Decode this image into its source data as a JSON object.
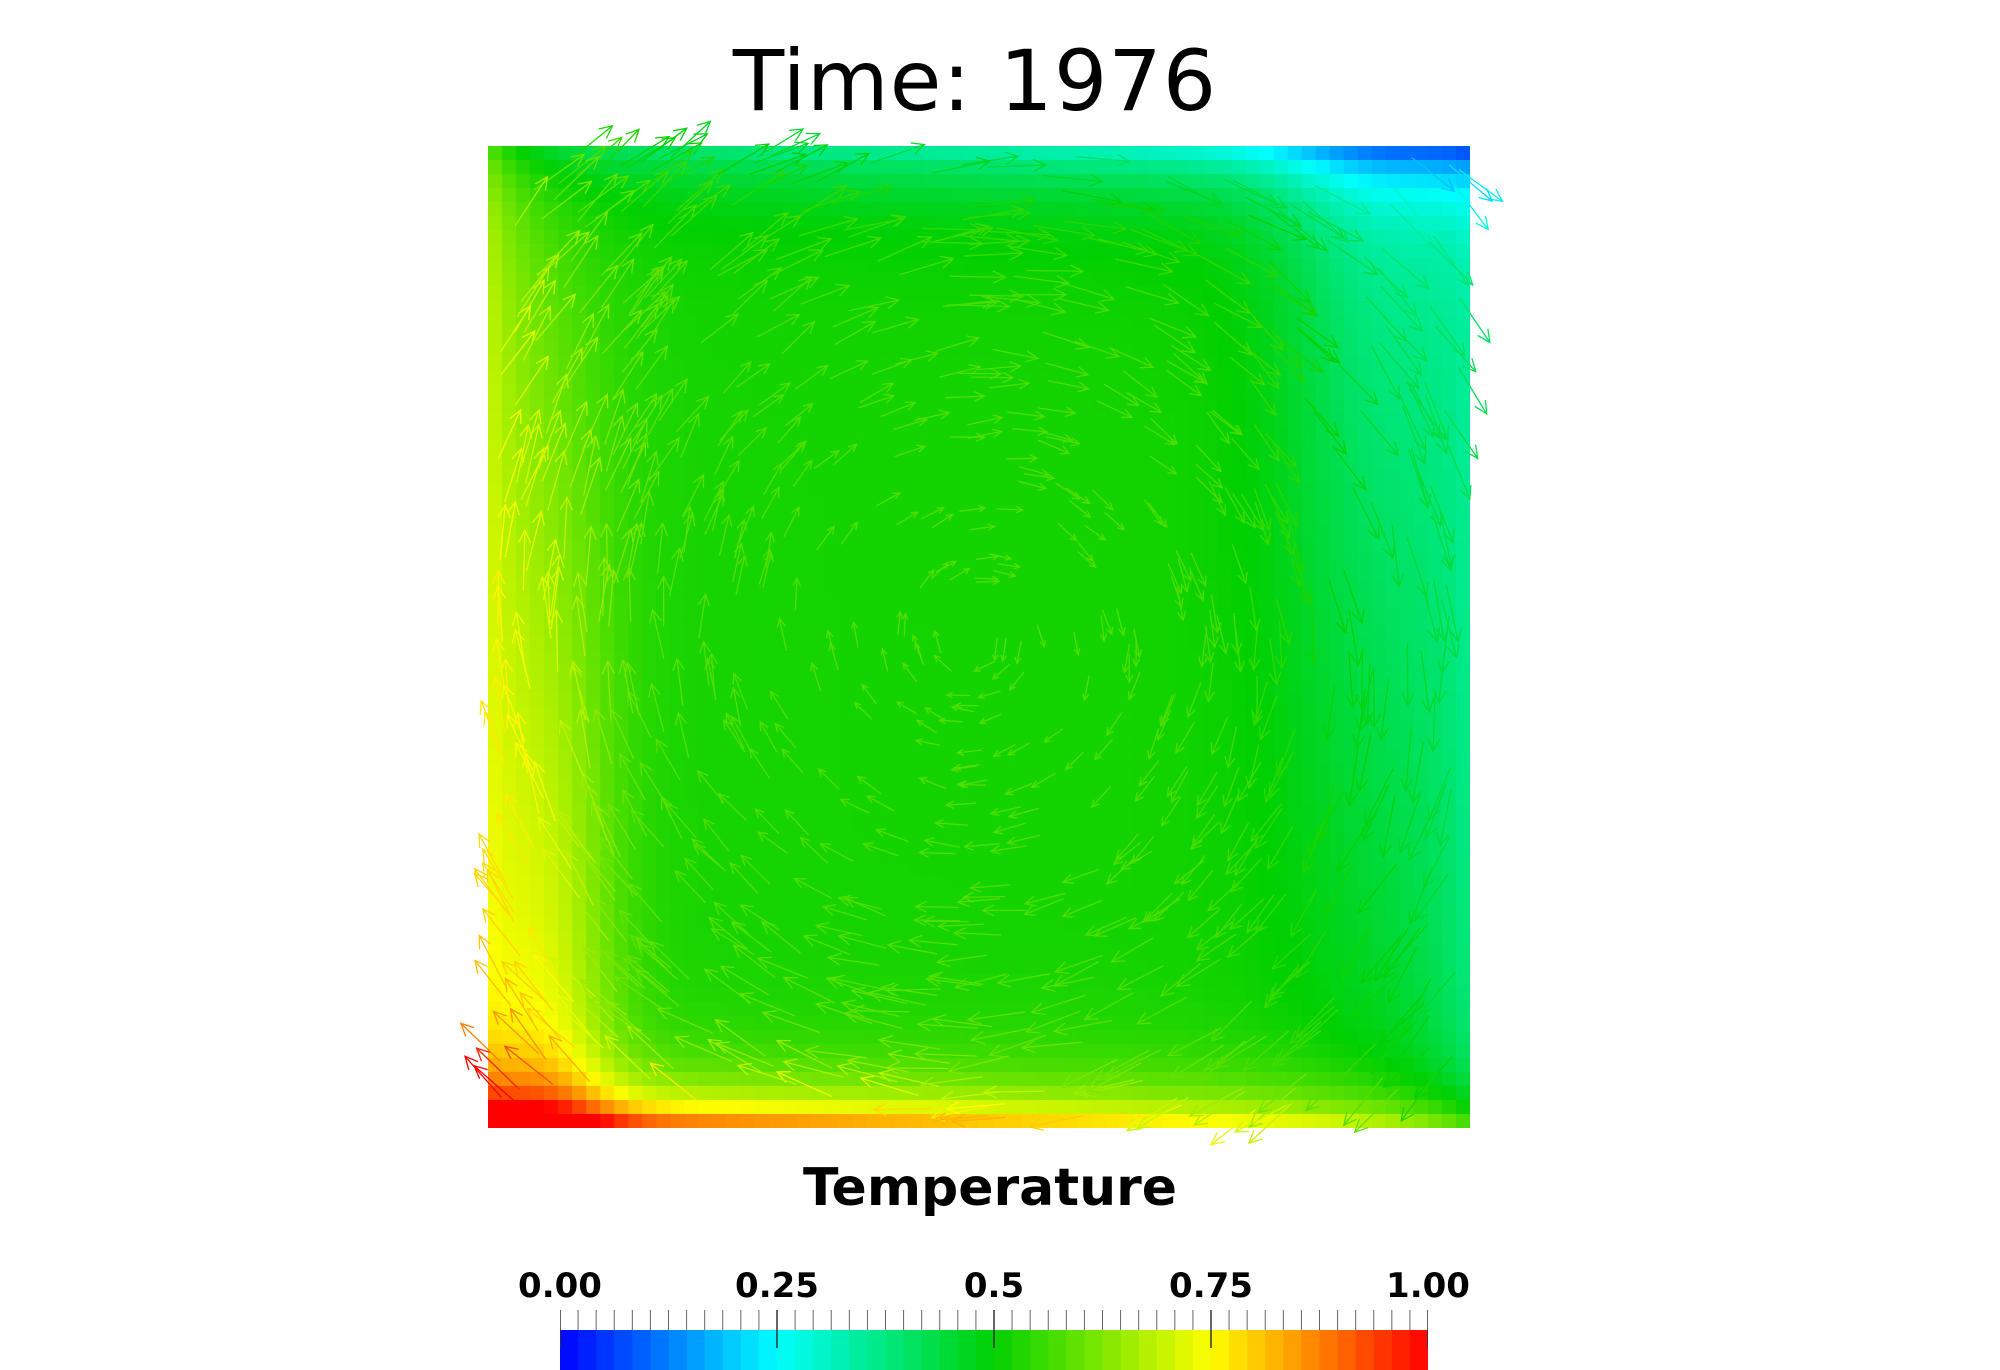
{
  "title": "Time: 1976",
  "colorbar": {
    "title": "Temperature",
    "min": 0.0,
    "max": 1.0,
    "ticks": [
      {
        "value": 0.0,
        "label": "0.00"
      },
      {
        "value": 0.25,
        "label": "0.25"
      },
      {
        "value": 0.5,
        "label": "0.5"
      },
      {
        "value": 0.75,
        "label": "0.75"
      },
      {
        "value": 1.0,
        "label": "1.00"
      }
    ],
    "colormap": "rainbow (blue-cyan-green-yellow-red)",
    "colors": [
      "#0000ff",
      "#00ffff",
      "#00d000",
      "#ffff00",
      "#ff0000"
    ]
  },
  "field": {
    "description_type": "temperature field with velocity glyph arrows",
    "cold_wall": "right",
    "hot_wall": "left",
    "circulation": "clockwise",
    "arrow_count": 900
  }
}
